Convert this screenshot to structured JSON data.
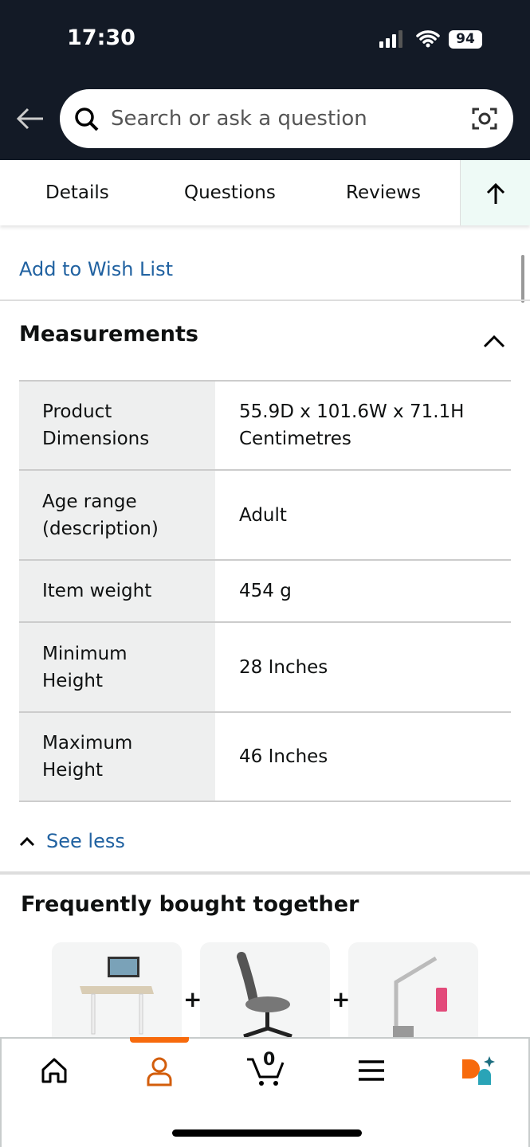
{
  "status_bar": {
    "time": "17:30",
    "battery": "94"
  },
  "search": {
    "placeholder": "Search or ask a question"
  },
  "tabs": [
    {
      "label": "Details"
    },
    {
      "label": "Questions"
    },
    {
      "label": "Reviews"
    }
  ],
  "wish_list": "Add to Wish List",
  "measurements": {
    "title": "Measurements",
    "rows": [
      {
        "key": "Product Dimensions",
        "value": "55.9D x 101.6W x 71.1H Centimetres"
      },
      {
        "key": "Age range (description)",
        "value": "Adult"
      },
      {
        "key": "Item weight",
        "value": "454 g"
      },
      {
        "key": "Minimum Height",
        "value": "28 Inches"
      },
      {
        "key": "Maximum Height",
        "value": "46 Inches"
      }
    ],
    "see_less": "See less"
  },
  "fbt": {
    "title": "Frequently bought together",
    "plus": "+",
    "items": [
      "standing-desk",
      "office-chair",
      "desk-lamp"
    ]
  },
  "bottom_nav": {
    "cart_count": "0",
    "active": "account",
    "accent": "#f76a0c"
  },
  "colors": {
    "header": "#131a26",
    "link": "#2162a1"
  }
}
